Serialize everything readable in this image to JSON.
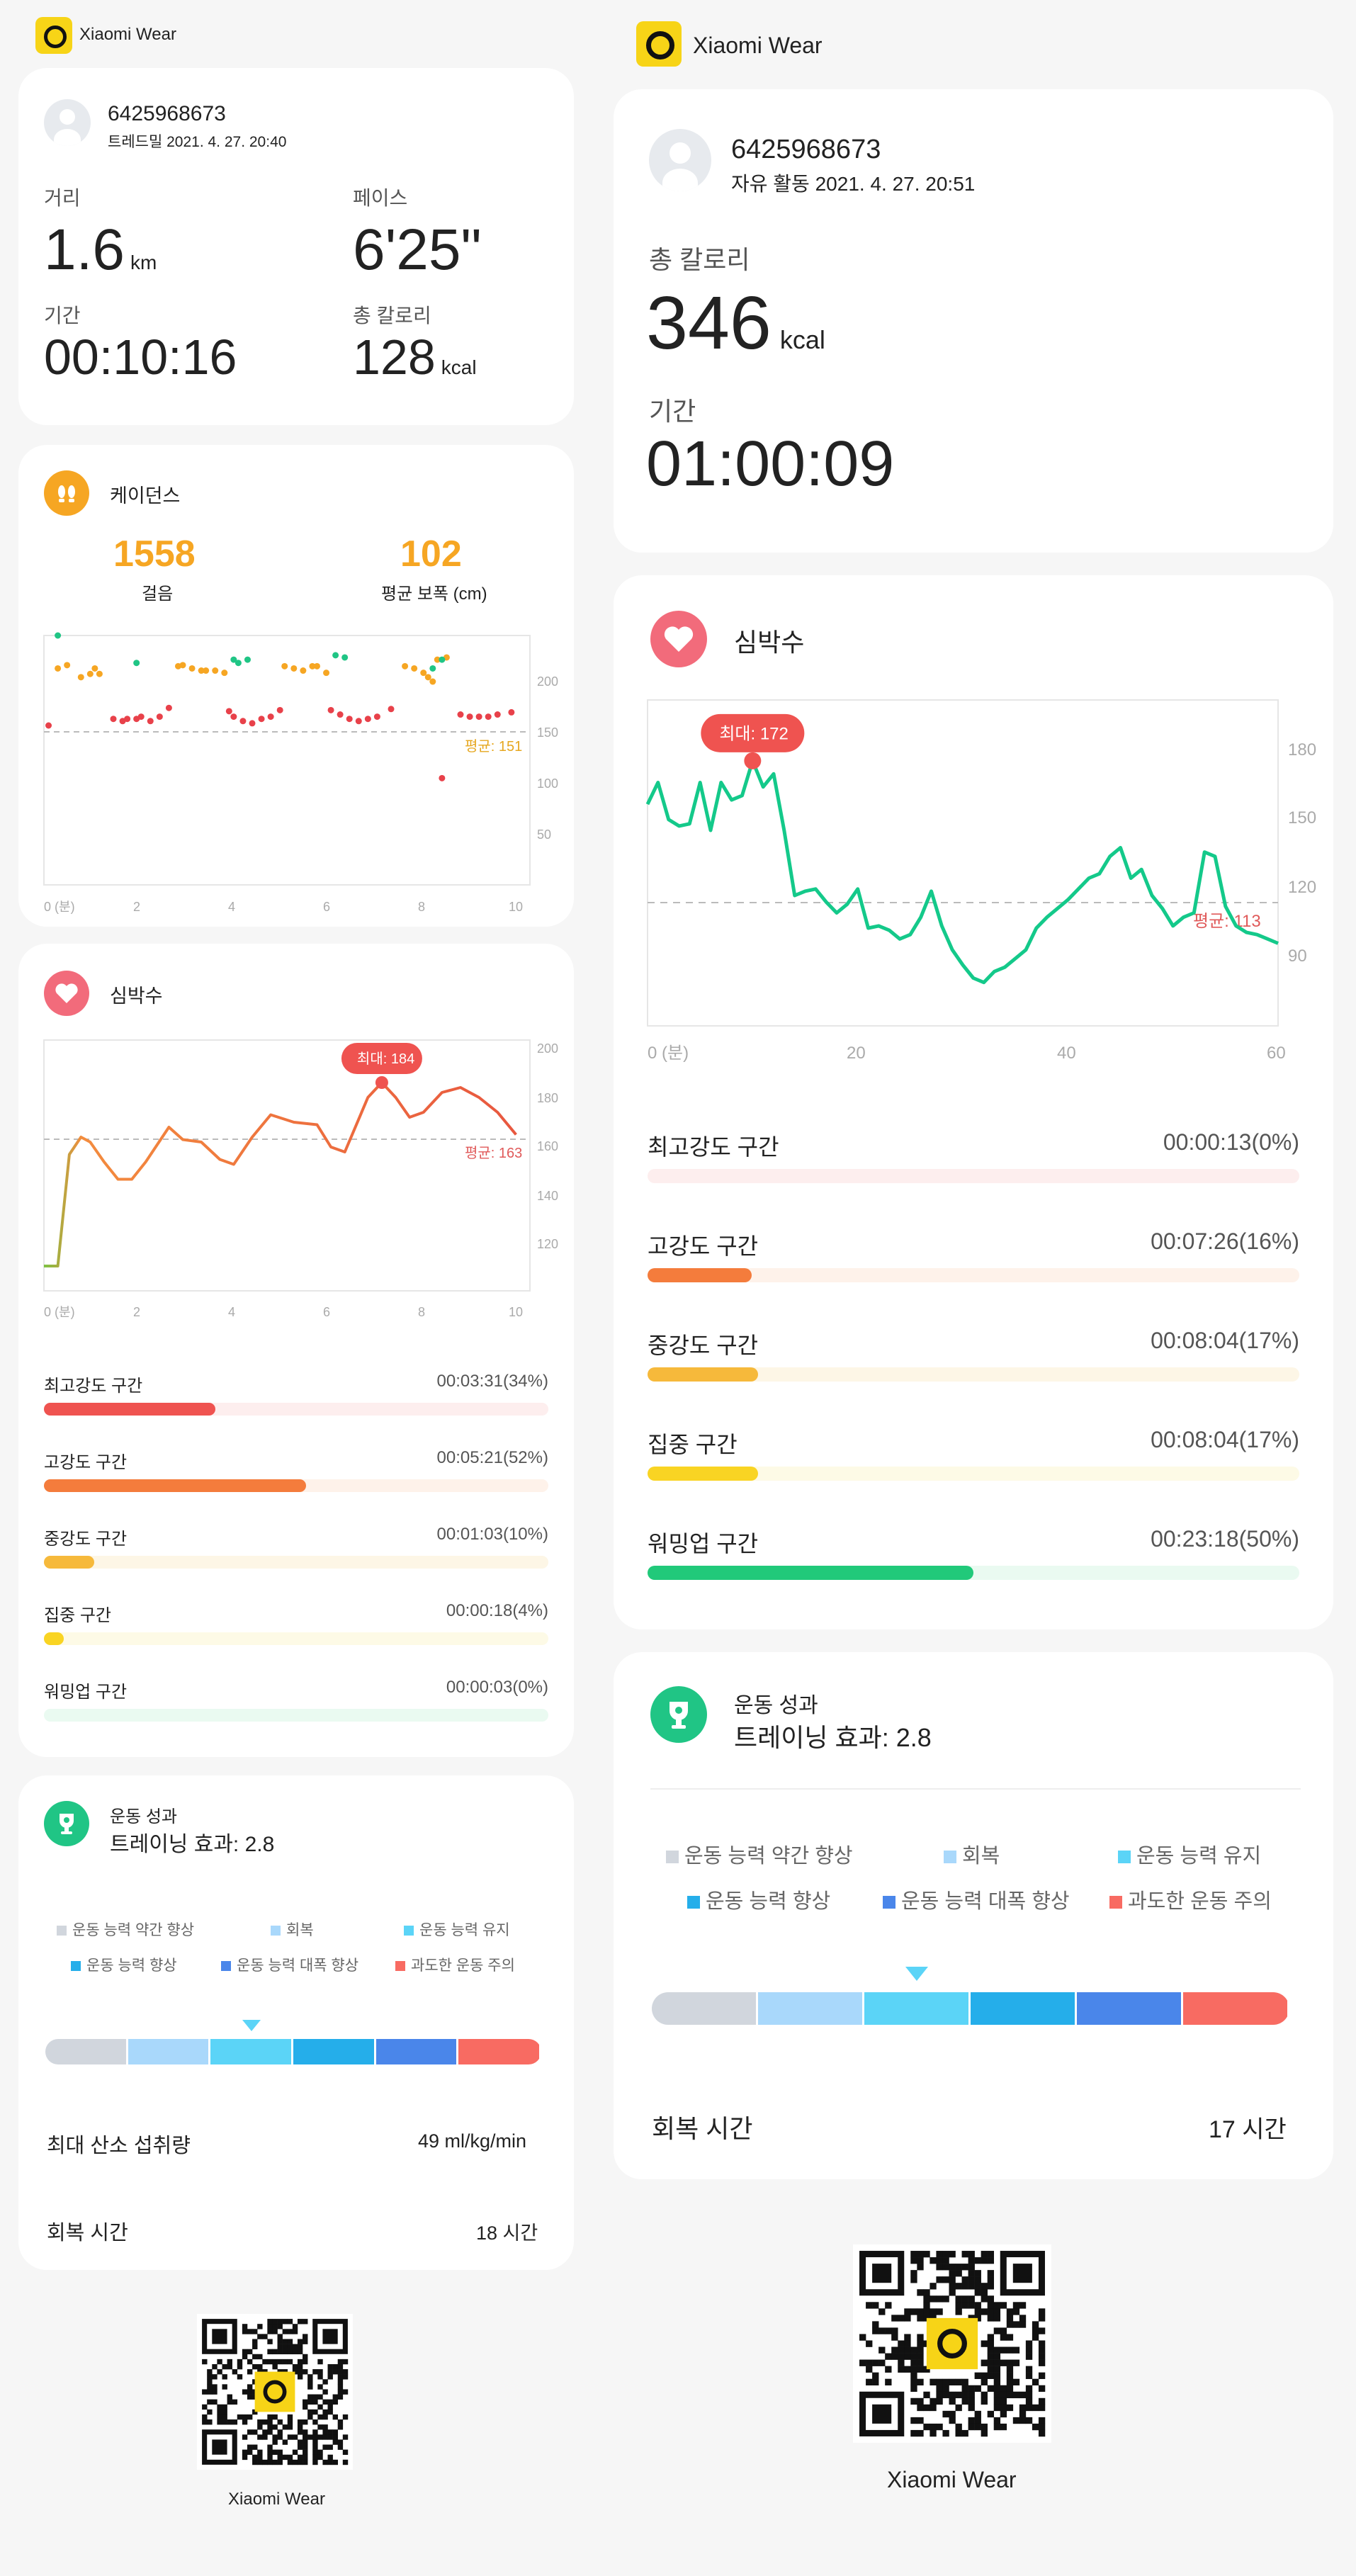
{
  "app_name": "Xiaomi Wear",
  "left": {
    "user": {
      "name": "6425968673",
      "activity": "트레드밀 2021. 4. 27. 20:40"
    },
    "stats": [
      {
        "label": "거리",
        "value": "1.6",
        "unit": "km"
      },
      {
        "label": "페이스",
        "value": "6'25\"",
        "unit": ""
      },
      {
        "label": "기간",
        "value": "00:10:16",
        "unit": ""
      },
      {
        "label": "총 칼로리",
        "value": "128",
        "unit": "kcal"
      }
    ],
    "cadence": {
      "title": "케이던스",
      "steps_value": "1558",
      "steps_label": "걸음",
      "stride_value": "102",
      "stride_label": "평균 보폭 (cm)",
      "avg_label": "평균: 151",
      "y_ticks": [
        "200",
        "150",
        "100",
        "50"
      ],
      "x_ticks": [
        "0 (분)",
        "2",
        "4",
        "6",
        "8",
        "10"
      ]
    },
    "heart": {
      "title": "심박수",
      "max_label": "최대: 184",
      "avg_label": "평균: 163",
      "y_ticks": [
        "200",
        "180",
        "160",
        "140",
        "120"
      ],
      "x_ticks": [
        "0 (분)",
        "2",
        "4",
        "6",
        "8",
        "10"
      ]
    },
    "zones": [
      {
        "label": "최고강도 구간",
        "value": "00:03:31(34%)",
        "fraction": 0.34,
        "color": "#ef5350",
        "bg": "#fdeeee"
      },
      {
        "label": "고강도 구간",
        "value": "00:05:21(52%)",
        "fraction": 0.52,
        "color": "#f47c3c",
        "bg": "#fef2ea"
      },
      {
        "label": "중강도 구간",
        "value": "00:01:03(10%)",
        "fraction": 0.1,
        "color": "#f6b93b",
        "bg": "#fdf6e6"
      },
      {
        "label": "집중 구간",
        "value": "00:00:18(4%)",
        "fraction": 0.04,
        "color": "#f9d423",
        "bg": "#fdfae6"
      },
      {
        "label": "워밍업 구간",
        "value": "00:00:03(0%)",
        "fraction": 0.0,
        "color": "#21c97a",
        "bg": "#eafaf1"
      }
    ],
    "performance": {
      "title": "운동 성과",
      "effect": "트레이닝 효과: 2.8",
      "legend_row1": [
        "운동 능력 약간 향상",
        "회복",
        "운동 능력 유지"
      ],
      "legend_row2": [
        "운동 능력 향상",
        "운동 능력 대폭 향상",
        "과도한 운동 주의"
      ],
      "vo2_label": "최대 산소 섭취량",
      "vo2_value": "49 ml/kg/min",
      "recovery_label": "회복 시간",
      "recovery_value": "18 시간"
    },
    "qr_label": "Xiaomi Wear"
  },
  "right": {
    "user": {
      "name": "6425968673",
      "activity": "자유 활동 2021. 4. 27. 20:51"
    },
    "calories_label": "총 칼로리",
    "calories_value": "346",
    "calories_unit": "kcal",
    "duration_label": "기간",
    "duration_value": "01:00:09",
    "heart": {
      "title": "심박수",
      "max_label": "최대: 172",
      "avg_label": "평균: 113",
      "y_ticks": [
        "180",
        "150",
        "120",
        "90"
      ],
      "x_ticks": [
        "0 (분)",
        "20",
        "40",
        "60"
      ]
    },
    "zones": [
      {
        "label": "최고강도 구간",
        "value": "00:00:13(0%)",
        "fraction": 0.0,
        "color": "#ef5350",
        "bg": "#fdeeee"
      },
      {
        "label": "고강도 구간",
        "value": "00:07:26(16%)",
        "fraction": 0.16,
        "color": "#f47c3c",
        "bg": "#fef2ea"
      },
      {
        "label": "중강도 구간",
        "value": "00:08:04(17%)",
        "fraction": 0.17,
        "color": "#f6b93b",
        "bg": "#fdf6e6"
      },
      {
        "label": "집중 구간",
        "value": "00:08:04(17%)",
        "fraction": 0.17,
        "color": "#f9d423",
        "bg": "#fdfae6"
      },
      {
        "label": "워밍업 구간",
        "value": "00:23:18(50%)",
        "fraction": 0.5,
        "color": "#21c97a",
        "bg": "#eafaf1"
      }
    ],
    "performance": {
      "title": "운동 성과",
      "effect": "트레이닝 효과: 2.8",
      "legend_row1": [
        "운동 능력 약간 향상",
        "회복",
        "운동 능력 유지"
      ],
      "legend_row2": [
        "운동 능력 향상",
        "운동 능력 대폭 향상",
        "과도한 운동 주의"
      ],
      "recovery_label": "회복 시간",
      "recovery_value": "17 시간"
    },
    "qr_label": "Xiaomi Wear"
  },
  "effect_colors": [
    "#d1d6dd",
    "#a9d8fb",
    "#5bd4f7",
    "#25aeea",
    "#4a86ea",
    "#f86b62"
  ],
  "chart_data": [
    {
      "type": "scatter",
      "title": "케이던스",
      "x_unit": "분",
      "xlim": [
        0,
        10.5
      ],
      "ylim": [
        0,
        200
      ],
      "series": [
        {
          "name": "",
          "points": [
            [
              0.1,
              118
            ],
            [
              0.3,
              170
            ],
            [
              0.5,
              173
            ],
            [
              0.8,
              162
            ],
            [
              1.0,
              165
            ],
            [
              1.1,
              170
            ],
            [
              1.2,
              165
            ],
            [
              1.5,
              124
            ],
            [
              1.7,
              122
            ],
            [
              1.8,
              124
            ],
            [
              2.0,
              124
            ],
            [
              2.1,
              126
            ],
            [
              2.3,
              122
            ],
            [
              2.5,
              126
            ],
            [
              2.7,
              134
            ],
            [
              2.9,
              172
            ],
            [
              3.0,
              173
            ],
            [
              3.2,
              170
            ],
            [
              3.4,
              168
            ],
            [
              3.5,
              168
            ],
            [
              3.7,
              168
            ],
            [
              3.9,
              166
            ],
            [
              4.0,
              131
            ],
            [
              4.1,
              126
            ],
            [
              4.3,
              122
            ],
            [
              4.5,
              120
            ],
            [
              4.7,
              124
            ],
            [
              4.9,
              126
            ],
            [
              5.1,
              132
            ],
            [
              5.2,
              172
            ],
            [
              5.4,
              170
            ],
            [
              5.6,
              168
            ],
            [
              5.8,
              172
            ],
            [
              5.9,
              172
            ],
            [
              6.1,
              166
            ],
            [
              6.2,
              132
            ],
            [
              6.4,
              128
            ],
            [
              6.6,
              124
            ],
            [
              6.8,
              122
            ],
            [
              7.0,
              124
            ],
            [
              7.2,
              126
            ],
            [
              7.5,
              133
            ],
            [
              7.8,
              172
            ],
            [
              8.0,
              170
            ],
            [
              8.2,
              166
            ],
            [
              8.3,
              162
            ],
            [
              8.4,
              158
            ],
            [
              8.5,
              178
            ],
            [
              8.7,
              180
            ],
            [
              9.0,
              128
            ],
            [
              9.2,
              126
            ],
            [
              9.4,
              126
            ],
            [
              9.6,
              126
            ],
            [
              9.8,
              128
            ],
            [
              10.1,
              130
            ],
            [
              8.6,
              70
            ]
          ]
        },
        {
          "name": "",
          "points": [
            [
              0.3,
              200
            ],
            [
              2.0,
              175
            ],
            [
              4.1,
              178
            ],
            [
              4.2,
              175
            ],
            [
              4.4,
              178
            ],
            [
              6.3,
              182
            ],
            [
              6.5,
              180
            ],
            [
              8.4,
              170
            ],
            [
              8.6,
              178
            ]
          ]
        }
      ],
      "avg": 151
    },
    {
      "type": "line",
      "title": "심박수",
      "x_unit": "분",
      "xlim": [
        0,
        10.5
      ],
      "ylim": [
        100,
        200
      ],
      "x": [
        0,
        0.3,
        0.55,
        0.8,
        1.0,
        1.3,
        1.6,
        1.9,
        2.2,
        2.7,
        3.0,
        3.4,
        3.8,
        4.1,
        4.5,
        4.9,
        5.4,
        5.9,
        6.2,
        6.5,
        7.0,
        7.3,
        7.6,
        7.9,
        8.2,
        8.6,
        9.0,
        9.4,
        9.8,
        10.2
      ],
      "y": [
        110,
        110,
        155,
        162,
        160,
        152,
        145,
        145,
        152,
        166,
        161,
        160,
        153,
        151,
        162,
        171,
        168,
        167,
        158,
        156,
        178,
        184,
        178,
        170,
        172,
        180,
        182,
        178,
        172,
        163
      ],
      "max": 184,
      "avg": 163
    },
    {
      "type": "line",
      "title": "심박수",
      "x_unit": "분",
      "xlim": [
        0,
        60
      ],
      "ylim": [
        50,
        200
      ],
      "x": [
        0,
        1,
        2,
        3,
        4,
        5,
        6,
        7,
        8,
        9,
        10,
        11,
        12,
        13,
        14,
        15,
        16,
        17,
        18,
        19,
        20,
        21,
        22,
        23,
        24,
        25,
        26,
        27,
        28,
        29,
        30,
        31,
        32,
        33,
        34,
        35,
        36,
        37,
        38,
        39,
        40,
        41,
        42,
        43,
        44,
        45,
        46,
        47,
        48,
        49,
        50,
        51,
        52,
        53,
        54,
        55,
        56,
        57,
        58,
        59,
        60
      ],
      "y": [
        152,
        162,
        145,
        142,
        143,
        162,
        140,
        162,
        154,
        156,
        172,
        160,
        166,
        140,
        110,
        112,
        113,
        107,
        102,
        106,
        113,
        95,
        96,
        94,
        90,
        92,
        100,
        112,
        96,
        85,
        78,
        72,
        70,
        75,
        77,
        81,
        85,
        95,
        100,
        104,
        108,
        113,
        118,
        120,
        128,
        132,
        118,
        122,
        110,
        104,
        96,
        100,
        102,
        130,
        128,
        105,
        96,
        93,
        92,
        90,
        88
      ],
      "max": 172,
      "avg": 113
    }
  ]
}
